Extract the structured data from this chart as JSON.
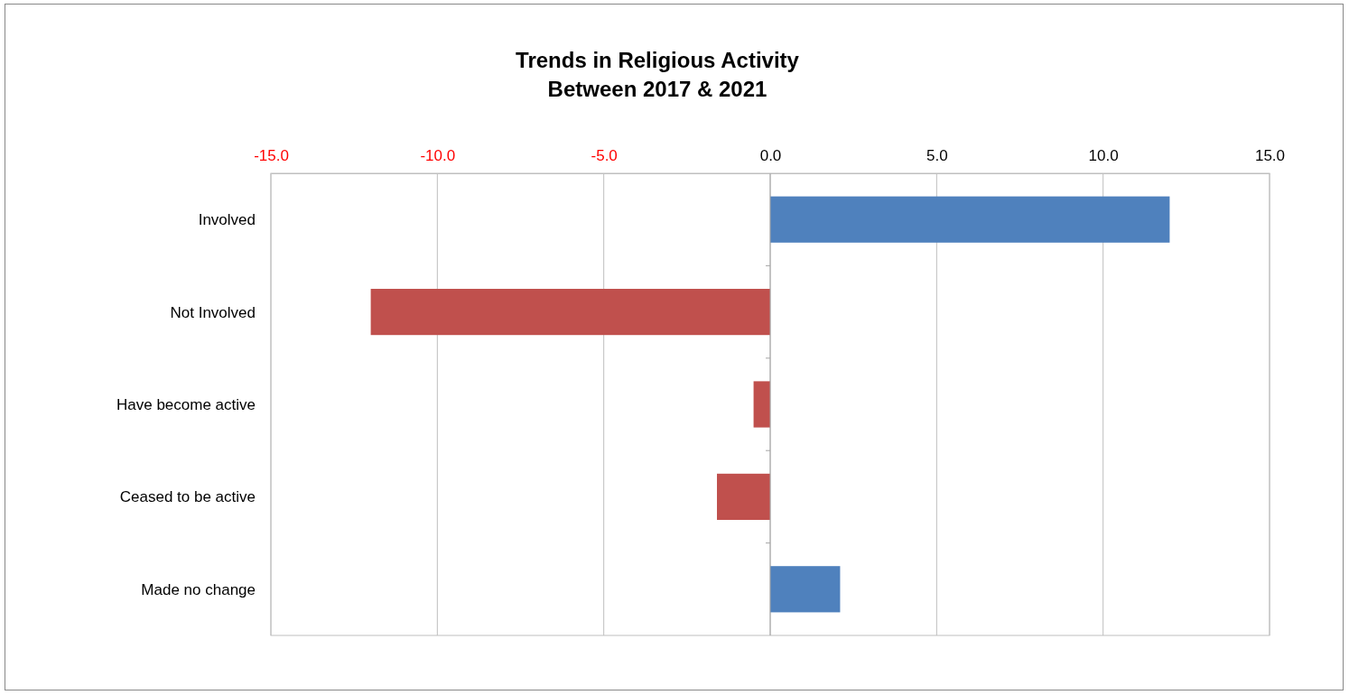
{
  "chart_data": {
    "type": "bar",
    "orientation": "horizontal",
    "title": "Trends in Religious Activity\nBetween 2017  & 2021",
    "categories": [
      "Involved",
      "Not Involved",
      "Have become active",
      "Ceased to be active",
      "Made no change"
    ],
    "values": [
      12.0,
      -12.0,
      -0.5,
      -1.6,
      2.1
    ],
    "colors": [
      "#4f81bd",
      "#c0504d",
      "#c0504d",
      "#c0504d",
      "#4f81bd"
    ],
    "xlim": [
      -15,
      15
    ],
    "xticks": [
      {
        "value": -15,
        "label": "-15.0"
      },
      {
        "value": -10,
        "label": "-10.0"
      },
      {
        "value": -5,
        "label": "-5.0"
      },
      {
        "value": 0,
        "label": "0.0"
      },
      {
        "value": 5,
        "label": "5.0"
      },
      {
        "value": 10,
        "label": "10.0"
      },
      {
        "value": 15,
        "label": "15.0"
      }
    ],
    "grid": "x"
  }
}
